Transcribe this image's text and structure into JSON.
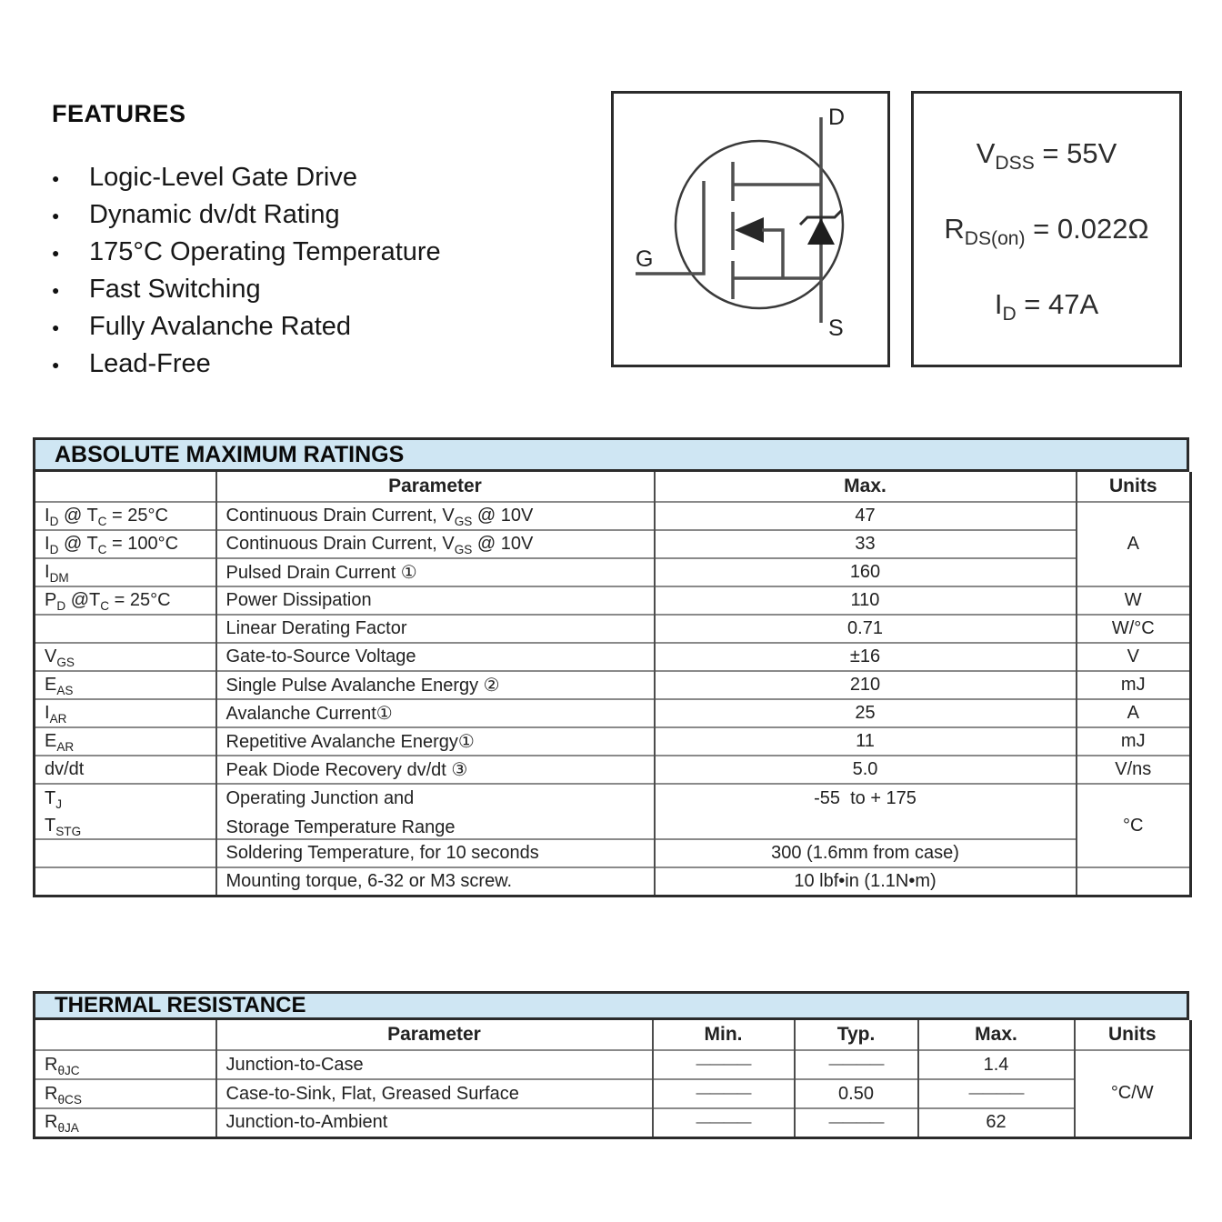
{
  "colors": {
    "band_bg": "#cfe6f3",
    "grid_line": "#8a8a8a",
    "table_border": "#2b2b2b"
  },
  "features": {
    "title": "FEATURES",
    "items": [
      "Logic-Level Gate Drive",
      "Dynamic dv/dt Rating",
      "175°C Operating Temperature",
      "Fast Switching",
      "Fully Avalanche Rated",
      "Lead-Free"
    ]
  },
  "mosfet_symbol": {
    "drain": "D",
    "gate": "G",
    "source": "S"
  },
  "key_specs": {
    "lines": [
      {
        "rich": [
          [
            "V",
            0
          ],
          [
            "DSS",
            1
          ],
          [
            " = 55V",
            0
          ]
        ]
      },
      {
        "rich": [
          [
            "R",
            0
          ],
          [
            "DS(on)",
            1
          ],
          [
            " = 0.022Ω",
            0
          ]
        ]
      },
      {
        "rich": [
          [
            "I",
            0
          ],
          [
            "D",
            1
          ],
          [
            " = 47A",
            0
          ]
        ]
      }
    ]
  },
  "ratings": {
    "title": "ABSOLUTE MAXIMUM RATINGS",
    "headers": {
      "parameter": "Parameter",
      "max": "Max.",
      "units": "Units"
    },
    "rows": [
      {
        "sym": [
          [
            "I",
            0
          ],
          [
            "D",
            1
          ],
          [
            " @ T",
            0
          ],
          [
            "C",
            1
          ],
          [
            " = 25°C",
            0
          ]
        ],
        "param": [
          [
            "Continuous Drain Current, V",
            0
          ],
          [
            "GS",
            1
          ],
          [
            " @ 10V",
            0
          ]
        ],
        "max": "47"
      },
      {
        "sym": [
          [
            "I",
            0
          ],
          [
            "D",
            1
          ],
          [
            " @ T",
            0
          ],
          [
            "C",
            1
          ],
          [
            " = 100°C",
            0
          ]
        ],
        "param": [
          [
            "Continuous Drain Current, V",
            0
          ],
          [
            "GS",
            1
          ],
          [
            " @ 10V",
            0
          ]
        ],
        "max": "33"
      },
      {
        "sym": [
          [
            "I",
            0
          ],
          [
            "DM",
            1
          ]
        ],
        "param": [
          [
            "Pulsed Drain Current ①",
            0
          ]
        ],
        "max": "160"
      },
      {
        "sym": [
          [
            "P",
            0
          ],
          [
            "D",
            1
          ],
          [
            " @T",
            0
          ],
          [
            "C",
            1
          ],
          [
            " = 25°C",
            0
          ]
        ],
        "param": [
          [
            "Power Dissipation",
            0
          ]
        ],
        "max": "110"
      },
      {
        "sym": [],
        "param": [
          [
            "Linear Derating Factor",
            0
          ]
        ],
        "max": "0.71"
      },
      {
        "sym": [
          [
            "V",
            0
          ],
          [
            "GS",
            1
          ]
        ],
        "param": [
          [
            "Gate-to-Source Voltage",
            0
          ]
        ],
        "max": "±16"
      },
      {
        "sym": [
          [
            "E",
            0
          ],
          [
            "AS",
            1
          ]
        ],
        "param": [
          [
            "Single Pulse Avalanche Energy ②",
            0
          ]
        ],
        "max": "210"
      },
      {
        "sym": [
          [
            "I",
            0
          ],
          [
            "AR",
            1
          ]
        ],
        "param": [
          [
            "Avalanche Current①",
            0
          ]
        ],
        "max": "25"
      },
      {
        "sym": [
          [
            "E",
            0
          ],
          [
            "AR",
            1
          ]
        ],
        "param": [
          [
            "Repetitive Avalanche Energy①",
            0
          ]
        ],
        "max": "11"
      },
      {
        "sym": [
          [
            "dv/dt",
            0
          ]
        ],
        "param": [
          [
            "Peak Diode Recovery dv/dt ③",
            0
          ]
        ],
        "max": "5.0"
      },
      {
        "sym": [
          [
            "T",
            0
          ],
          [
            "J",
            1
          ]
        ],
        "sym2": [
          [
            "T",
            0
          ],
          [
            "STG",
            1
          ]
        ],
        "param": [
          [
            "Operating Junction and",
            0
          ]
        ],
        "param2": [
          [
            "Storage Temperature Range",
            0
          ]
        ],
        "max": "-55  to + 175"
      },
      {
        "sym": [],
        "param": [
          [
            "Soldering Temperature, for 10 seconds",
            0
          ]
        ],
        "max": "300 (1.6mm from case)"
      },
      {
        "sym": [],
        "param": [
          [
            "Mounting torque, 6-32 or M3 screw.",
            0
          ]
        ],
        "max": "10 lbf•in (1.1N•m)"
      }
    ],
    "units": [
      "A",
      "W",
      "W/°C",
      "V",
      "mJ",
      "A",
      "mJ",
      "V/ns",
      "°C",
      ""
    ]
  },
  "thermal": {
    "title": "THERMAL RESISTANCE",
    "headers": {
      "parameter": "Parameter",
      "min": "Min.",
      "typ": "Typ.",
      "max": "Max.",
      "units": "Units"
    },
    "rows": [
      {
        "sym": [
          [
            "R",
            0
          ],
          [
            "θJC",
            1
          ]
        ],
        "param": "Junction-to-Case",
        "min": "————",
        "typ": "————",
        "max": "1.4"
      },
      {
        "sym": [
          [
            "R",
            0
          ],
          [
            "θCS",
            1
          ]
        ],
        "param": "Case-to-Sink, Flat, Greased Surface",
        "min": "————",
        "typ": "0.50",
        "max": "————"
      },
      {
        "sym": [
          [
            "R",
            0
          ],
          [
            "θJA",
            1
          ]
        ],
        "param": "Junction-to-Ambient",
        "min": "————",
        "typ": "————",
        "max": "62"
      }
    ],
    "units": "°C/W"
  }
}
